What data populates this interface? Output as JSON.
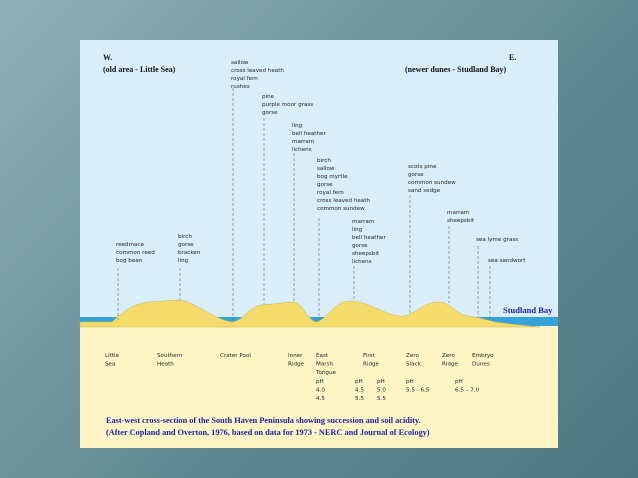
{
  "header": {
    "west": "W.",
    "west_note": "(old area - Little Sea)",
    "east": "E.",
    "east_note": "(newer dunes - Studland Bay)"
  },
  "plant_lists": [
    {
      "species": [
        "sallow",
        "cross leaved heath",
        "royal fern",
        "rushes"
      ]
    },
    {
      "species": [
        "pine",
        "purple moor grass",
        "gorse"
      ]
    },
    {
      "species": [
        "ling",
        "bell heather",
        "marram",
        "lichens"
      ]
    },
    {
      "species": [
        "birch",
        "sallow",
        "bog myrtle",
        "gorse",
        "royal fern",
        "cross leaved heath",
        "common sundew"
      ]
    },
    {
      "species": [
        "marram",
        "ling",
        "bell heather",
        "gorse",
        "sheepsbit",
        "lichens"
      ]
    },
    {
      "species": [
        "scots pine",
        "gorse",
        "common sundew",
        "sand sedge"
      ]
    },
    {
      "species": [
        "marram",
        "sheepsbit"
      ]
    },
    {
      "species": [
        "sea lyme grass"
      ]
    },
    {
      "species": [
        "sea sandwort"
      ]
    },
    {
      "species": [
        "birch",
        "gorse",
        "bracken",
        "ling"
      ]
    },
    {
      "species": [
        "reedmace",
        "common reed",
        "bog bean"
      ]
    }
  ],
  "sea_label": "Studland Bay",
  "zones": [
    {
      "lines": [
        "Little",
        "Sea"
      ]
    },
    {
      "lines": [
        "Southern",
        "Heath"
      ]
    },
    {
      "lines": [
        "Crater Pool"
      ]
    },
    {
      "lines": [
        "Inner",
        "Ridge"
      ]
    },
    {
      "lines": [
        "East",
        "Marsh",
        "Tongue"
      ]
    },
    {
      "lines": [
        "First",
        "Ridge"
      ]
    },
    {
      "lines": [
        "Zero",
        "Slack"
      ]
    },
    {
      "lines": [
        "Zero",
        "Ridge"
      ]
    },
    {
      "lines": [
        "Embryo",
        "Dunes"
      ]
    }
  ],
  "ph": [
    {
      "lines": [
        "pH",
        "4.0",
        "4.5"
      ]
    },
    {
      "lines": [
        "pH",
        "4.5",
        "5.5"
      ]
    },
    {
      "lines": [
        "pH",
        "5.0",
        "5.5"
      ]
    },
    {
      "lines": [
        "pH",
        "5.5 - 6.5"
      ]
    },
    {
      "lines": [
        "pH",
        "6.5 – 7.0"
      ]
    }
  ],
  "caption": [
    "East-west cross-section of the South Haven Peninsula showing succession and soil acidity.",
    "(After Copland and Overton, 1976, based on data for 1973 - NERC and Journal of Ecology)"
  ]
}
